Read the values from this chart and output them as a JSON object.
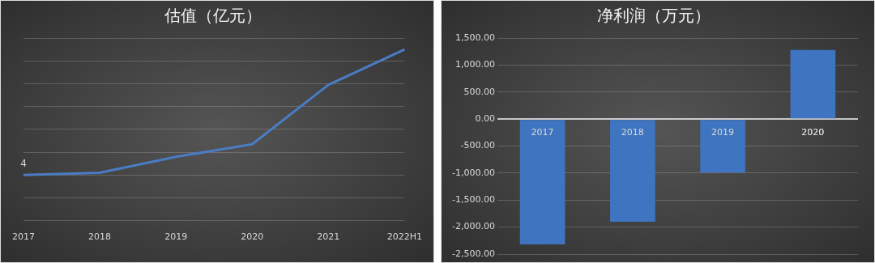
{
  "chart_data": [
    {
      "type": "line",
      "title": "估值（亿元）",
      "categories": [
        "2017",
        "2018",
        "2019",
        "2020",
        "2021",
        "2022H1"
      ],
      "ylim": [
        0,
        16
      ],
      "yticks": [
        {
          "value": 0,
          "label": null
        },
        {
          "value": 2,
          "label": null
        },
        {
          "value": 4,
          "label": null
        },
        {
          "value": 6,
          "label": null
        },
        {
          "value": 8,
          "label": null
        },
        {
          "value": 10,
          "label": null
        },
        {
          "value": 12,
          "label": null
        },
        {
          "value": 14,
          "label": null
        },
        {
          "value": 16,
          "label": null
        }
      ],
      "tick_labels": "x",
      "grid": "y",
      "marker": "none",
      "line_style": "solid",
      "series": [
        {
          "color": "#4a7cc4",
          "values": [
            4,
            4.2,
            5.6,
            6.7,
            11.9,
            15.0
          ],
          "value_labels": [
            "4",
            null,
            null,
            null,
            null,
            null
          ]
        }
      ]
    },
    {
      "type": "bar",
      "title": "净利润（万元）",
      "categories": [
        "2017",
        "2018",
        "2019",
        "2020"
      ],
      "ylim": [
        -2500,
        1500
      ],
      "yticks": [
        {
          "value": -2500,
          "label": "-2,500.00"
        },
        {
          "value": -2000,
          "label": "-2,000.00"
        },
        {
          "value": -1500,
          "label": "-1,500.00"
        },
        {
          "value": -1000,
          "label": "-1,000.00"
        },
        {
          "value": -500,
          "label": "-500.00"
        },
        {
          "value": 0,
          "label": "0.00"
        },
        {
          "value": 500,
          "label": "500.00"
        },
        {
          "value": 1000,
          "label": "1,000.00"
        },
        {
          "value": 1500,
          "label": "1,500.00"
        }
      ],
      "grid": "y",
      "series": [
        {
          "color": "#3f74c0",
          "values": [
            -2320,
            -1900,
            -990,
            1280
          ]
        }
      ]
    }
  ]
}
